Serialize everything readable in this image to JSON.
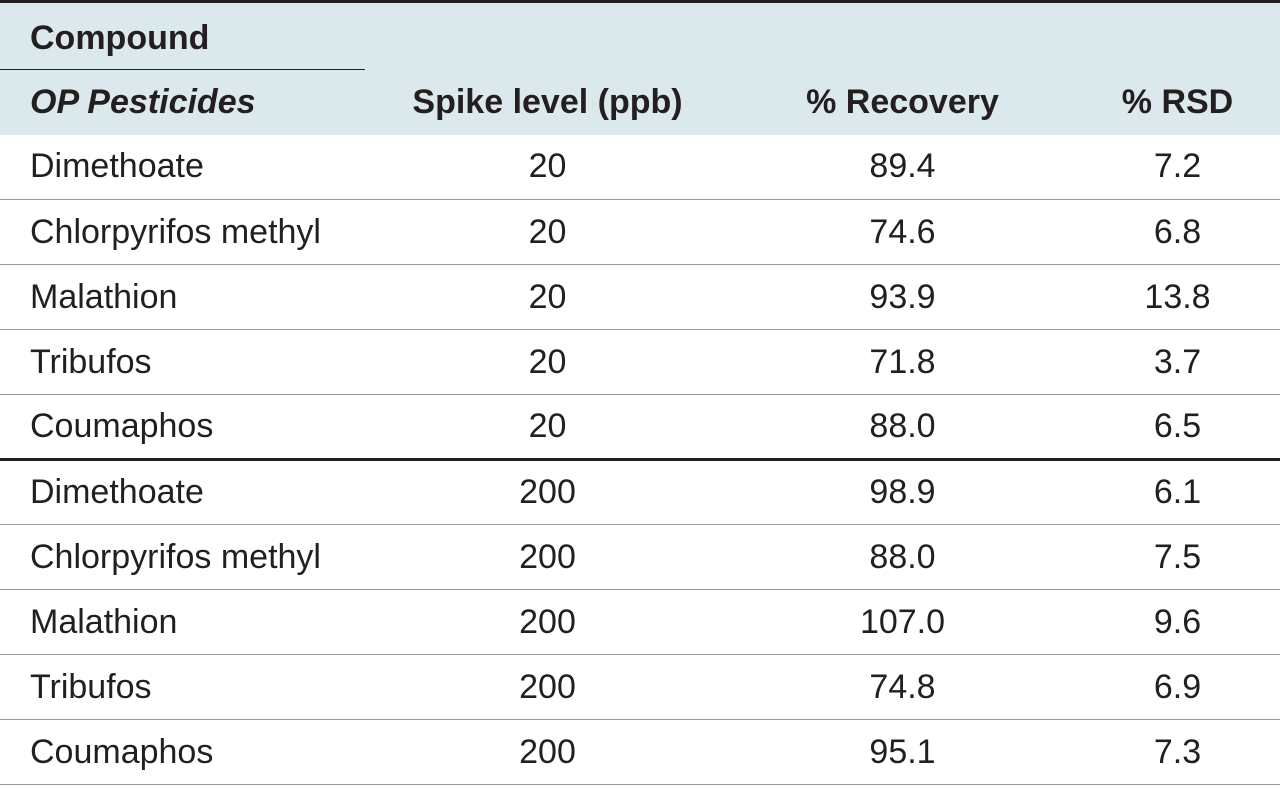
{
  "table": {
    "header": {
      "compound_label": "Compound",
      "subheading": "OP Pesticides",
      "columns": [
        "Spike level (ppb)",
        "% Recovery",
        "% RSD"
      ]
    },
    "rows": [
      {
        "compound": "Dimethoate",
        "spike": "20",
        "recovery": "89.4",
        "rsd": "7.2"
      },
      {
        "compound": "Chlorpyrifos methyl",
        "spike": "20",
        "recovery": "74.6",
        "rsd": "6.8"
      },
      {
        "compound": "Malathion",
        "spike": "20",
        "recovery": "93.9",
        "rsd": "13.8"
      },
      {
        "compound": "Tribufos",
        "spike": "20",
        "recovery": "71.8",
        "rsd": "3.7"
      },
      {
        "compound": "Coumaphos",
        "spike": "20",
        "recovery": "88.0",
        "rsd": "6.5"
      },
      {
        "compound": "Dimethoate",
        "spike": "200",
        "recovery": "98.9",
        "rsd": "6.1"
      },
      {
        "compound": "Chlorpyrifos methyl",
        "spike": "200",
        "recovery": "88.0",
        "rsd": "7.5"
      },
      {
        "compound": "Malathion",
        "spike": "200",
        "recovery": "107.0",
        "rsd": "9.6"
      },
      {
        "compound": "Tribufos",
        "spike": "200",
        "recovery": "74.8",
        "rsd": "6.9"
      },
      {
        "compound": "Coumaphos",
        "spike": "200",
        "recovery": "95.1",
        "rsd": "7.3"
      }
    ]
  }
}
